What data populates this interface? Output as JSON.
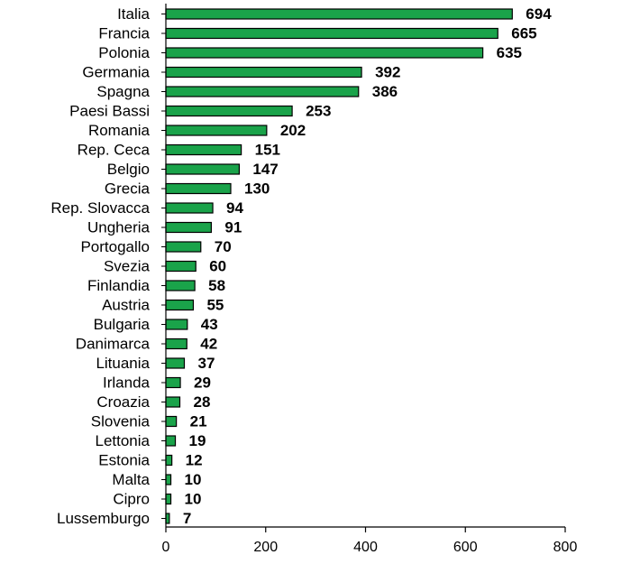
{
  "chart_data": {
    "type": "bar",
    "orientation": "horizontal",
    "categories": [
      "Italia",
      "Francia",
      "Polonia",
      "Germania",
      "Spagna",
      "Paesi Bassi",
      "Romania",
      "Rep. Ceca",
      "Belgio",
      "Grecia",
      "Rep. Slovacca",
      "Ungheria",
      "Portogallo",
      "Svezia",
      "Finlandia",
      "Austria",
      "Bulgaria",
      "Danimarca",
      "Lituania",
      "Irlanda",
      "Croazia",
      "Slovenia",
      "Lettonia",
      "Estonia",
      "Malta",
      "Cipro",
      "Lussemburgo"
    ],
    "values": [
      694,
      665,
      635,
      392,
      386,
      253,
      202,
      151,
      147,
      130,
      94,
      91,
      70,
      60,
      58,
      55,
      43,
      42,
      37,
      29,
      28,
      21,
      19,
      12,
      10,
      10,
      7
    ],
    "value_labels": [
      "694",
      "665",
      "635",
      "392",
      "386",
      "253",
      "202",
      "151",
      "147",
      "130",
      "94",
      "91",
      "70",
      "60",
      "58",
      "55",
      "43",
      "42",
      "37",
      "29",
      "28",
      "21",
      "19",
      "12",
      "10",
      "10",
      "7"
    ],
    "xlim": [
      0,
      800
    ],
    "x_ticks": [
      0,
      200,
      400,
      600,
      800
    ],
    "x_tick_labels": [
      "0",
      "200",
      "400",
      "600",
      "800"
    ],
    "title": "",
    "xlabel": "",
    "ylabel": "",
    "grid": false,
    "legend": "none",
    "colors": {
      "bar_fill": "#1aa34a",
      "bar_stroke": "#000000",
      "axis": "#000000"
    }
  }
}
